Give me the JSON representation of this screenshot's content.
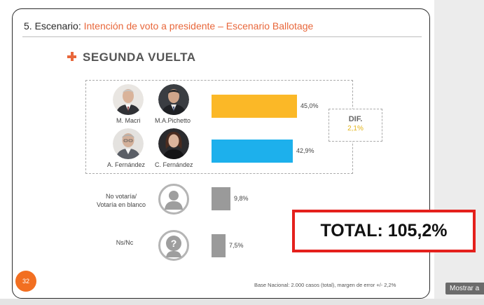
{
  "slide": {
    "title_prefix": "5. Escenario: ",
    "title_accent": "Intención de voto a presidente – Escenario Ballotage",
    "section_title": "SEGUNDA VUELTA",
    "page_number": "32",
    "footnote": "Base Nacional: 2.000 casos (total), margen de error +/- 2,2%"
  },
  "candidates": [
    {
      "name": "M. Macri",
      "photo": "person-photo"
    },
    {
      "name": "M.A.Pichetto",
      "photo": "person-photo"
    },
    {
      "name": "A. Fernández",
      "photo": "person-photo"
    },
    {
      "name": "C. Fernández",
      "photo": "person-photo"
    }
  ],
  "bars": [
    {
      "label": "Macri-Pichetto",
      "value_label": "45,0%",
      "value": 45.0,
      "color": "#fbb827"
    },
    {
      "label": "Fernández-Fernández",
      "value_label": "42,9%",
      "value": 42.9,
      "color": "#1db0ec"
    },
    {
      "label": "No votaría/\nVotaría en blanco",
      "value_label": "9,8%",
      "value": 9.8,
      "color": "#9a9a9a"
    },
    {
      "label": "Ns/Nc",
      "value_label": "7,5%",
      "value": 7.5,
      "color": "#9a9a9a"
    }
  ],
  "dif": {
    "label": "DIF.",
    "value": "2,1%"
  },
  "other_options": {
    "no_votaria": "No votaría/\nVotaría en blanco",
    "nsnc": "Ns/Nc"
  },
  "total": "TOTAL: 105,2%",
  "sidebar": {
    "button": "Mostrar a"
  },
  "colors": {
    "accent": "#e8673b",
    "yellow": "#fbb827",
    "blue": "#1db0ec",
    "gray": "#9a9a9a",
    "red": "#e4201c"
  }
}
